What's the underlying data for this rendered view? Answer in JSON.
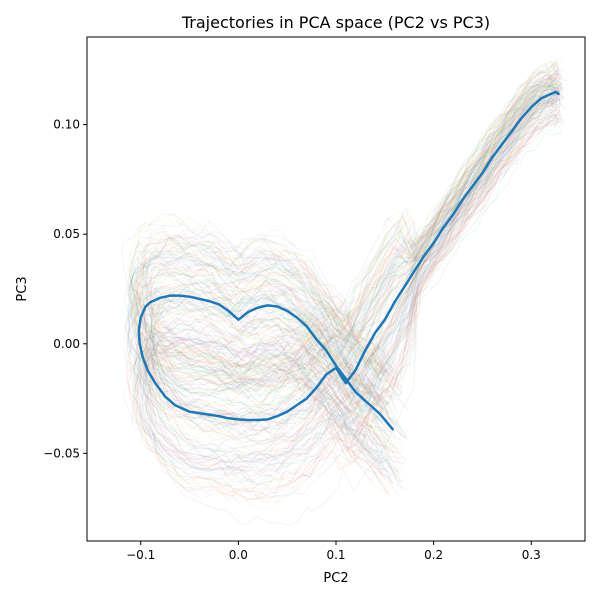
{
  "chart_data": {
    "type": "line",
    "title": "Trajectories in PCA space (PC2 vs PC3)",
    "xlabel": "PC2",
    "ylabel": "PC3",
    "xlim": [
      -0.155,
      0.355
    ],
    "ylim": [
      -0.09,
      0.14
    ],
    "xticks": [
      -0.1,
      0.0,
      0.1,
      0.2,
      0.3
    ],
    "xtick_labels": [
      "−0.1",
      "0.0",
      "0.1",
      "0.2",
      "0.3"
    ],
    "yticks": [
      -0.05,
      0.0,
      0.05,
      0.1
    ],
    "ytick_labels": [
      "−0.05",
      "0.00",
      "0.05",
      "0.10"
    ],
    "grid": false,
    "legend": "none",
    "mean_trajectory_color": "#1f77b4",
    "cloud_colors": [
      "#1f77b4",
      "#ff7f0e",
      "#2ca02c",
      "#d62728",
      "#9467bd",
      "#8c564b",
      "#e377c2",
      "#7f7f7f",
      "#bcbd22",
      "#17becf"
    ],
    "series": [
      {
        "style": "mean-trajectory",
        "x": [
          0.158,
          0.145,
          0.14,
          0.13,
          0.12,
          0.11,
          0.1,
          0.09,
          0.08,
          0.07,
          0.06,
          0.05,
          0.04,
          0.03,
          0.02,
          0.01,
          0.0,
          -0.01,
          -0.02,
          -0.03,
          -0.04,
          -0.05,
          -0.06,
          -0.07,
          -0.08,
          -0.09,
          -0.095,
          -0.1,
          -0.102,
          -0.101,
          -0.098,
          -0.093,
          -0.085,
          -0.075,
          -0.065,
          -0.05,
          -0.035,
          -0.02,
          -0.01,
          0.0,
          0.01,
          0.02,
          0.03,
          0.04,
          0.05,
          0.06,
          0.07,
          0.08,
          0.09,
          0.1,
          0.11,
          0.12,
          0.13,
          0.14,
          0.15,
          0.16,
          0.17,
          0.18,
          0.19,
          0.2,
          0.21,
          0.22,
          0.23,
          0.24,
          0.25,
          0.26,
          0.27,
          0.28,
          0.29,
          0.3,
          0.31,
          0.32,
          0.325,
          0.328
        ],
        "y": [
          -0.039,
          -0.032,
          -0.03,
          -0.026,
          -0.022,
          -0.016,
          -0.01,
          -0.003,
          0.002,
          0.008,
          0.012,
          0.015,
          0.017,
          0.0175,
          0.0165,
          0.0145,
          0.011,
          0.015,
          0.018,
          0.0195,
          0.0205,
          0.0215,
          0.022,
          0.022,
          0.021,
          0.019,
          0.017,
          0.012,
          0.006,
          0.0,
          -0.006,
          -0.012,
          -0.018,
          -0.024,
          -0.028,
          -0.031,
          -0.032,
          -0.033,
          -0.034,
          -0.0345,
          -0.0348,
          -0.0348,
          -0.0345,
          -0.033,
          -0.031,
          -0.028,
          -0.025,
          -0.02,
          -0.014,
          -0.011,
          -0.018,
          -0.012,
          -0.003,
          0.005,
          0.011,
          0.019,
          0.026,
          0.033,
          0.04,
          0.046,
          0.053,
          0.059,
          0.066,
          0.072,
          0.078,
          0.085,
          0.091,
          0.097,
          0.103,
          0.108,
          0.112,
          0.114,
          0.115,
          0.114
        ]
      }
    ]
  }
}
